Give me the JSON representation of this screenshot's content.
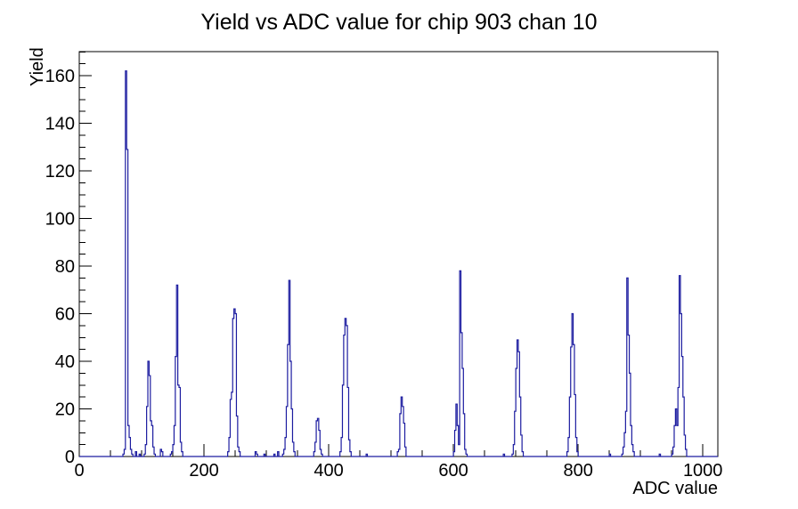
{
  "title": "Yield vs ADC value for chip 903 chan 10",
  "colors": {
    "histogram": "#1c1ca0",
    "axis": "#000000",
    "background": "#ffffff"
  },
  "chart_data": {
    "type": "line",
    "subtype": "histogram-step",
    "title": "Yield vs ADC value for chip 903 chan 10",
    "xlabel": "ADC value",
    "ylabel": "Yield",
    "xlim": [
      0,
      1024
    ],
    "ylim": [
      0,
      170.1
    ],
    "grid": false,
    "legend": "none",
    "x_major_ticks": [
      0,
      200,
      400,
      600,
      800,
      1000
    ],
    "x_major_tick_labels": [
      "0",
      "200",
      "400",
      "600",
      "800",
      "1000"
    ],
    "x_minor_step": 50,
    "y_major_ticks": [
      0,
      20,
      40,
      60,
      80,
      100,
      120,
      140,
      160
    ],
    "y_major_tick_labels": [
      "0",
      "20",
      "40",
      "60",
      "80",
      "100",
      "120",
      "140",
      "160"
    ],
    "y_minor_step": 5,
    "bin_width": 2,
    "bins": [
      [
        70,
        1
      ],
      [
        72,
        3
      ],
      [
        74,
        162
      ],
      [
        76,
        129
      ],
      [
        78,
        13
      ],
      [
        80,
        8
      ],
      [
        82,
        3
      ],
      [
        84,
        1
      ],
      [
        90,
        2
      ],
      [
        96,
        1
      ],
      [
        104,
        1
      ],
      [
        106,
        5
      ],
      [
        108,
        21
      ],
      [
        110,
        40
      ],
      [
        112,
        34
      ],
      [
        114,
        15
      ],
      [
        116,
        13
      ],
      [
        118,
        4
      ],
      [
        120,
        1
      ],
      [
        130,
        3
      ],
      [
        132,
        2
      ],
      [
        146,
        1
      ],
      [
        148,
        2
      ],
      [
        150,
        5
      ],
      [
        152,
        13
      ],
      [
        154,
        42
      ],
      [
        156,
        72
      ],
      [
        158,
        30
      ],
      [
        160,
        29
      ],
      [
        162,
        6
      ],
      [
        164,
        2
      ],
      [
        238,
        2
      ],
      [
        240,
        8
      ],
      [
        242,
        24
      ],
      [
        244,
        27
      ],
      [
        246,
        58
      ],
      [
        248,
        62
      ],
      [
        250,
        60
      ],
      [
        252,
        17
      ],
      [
        254,
        4
      ],
      [
        256,
        2
      ],
      [
        282,
        2
      ],
      [
        284,
        1
      ],
      [
        296,
        1
      ],
      [
        312,
        1
      ],
      [
        318,
        2
      ],
      [
        326,
        1
      ],
      [
        328,
        3
      ],
      [
        330,
        8
      ],
      [
        332,
        21
      ],
      [
        334,
        47
      ],
      [
        336,
        74
      ],
      [
        338,
        40
      ],
      [
        340,
        20
      ],
      [
        342,
        6
      ],
      [
        344,
        2
      ],
      [
        376,
        2
      ],
      [
        378,
        6
      ],
      [
        380,
        15
      ],
      [
        382,
        16
      ],
      [
        384,
        11
      ],
      [
        386,
        3
      ],
      [
        388,
        1
      ],
      [
        418,
        2
      ],
      [
        420,
        8
      ],
      [
        422,
        30
      ],
      [
        424,
        51
      ],
      [
        426,
        58
      ],
      [
        428,
        55
      ],
      [
        430,
        29
      ],
      [
        432,
        7
      ],
      [
        434,
        2
      ],
      [
        460,
        1
      ],
      [
        510,
        2
      ],
      [
        512,
        3
      ],
      [
        514,
        18
      ],
      [
        516,
        25
      ],
      [
        518,
        21
      ],
      [
        520,
        14
      ],
      [
        522,
        4
      ],
      [
        600,
        2
      ],
      [
        602,
        11
      ],
      [
        604,
        22
      ],
      [
        606,
        13
      ],
      [
        608,
        5
      ],
      [
        610,
        78
      ],
      [
        612,
        52
      ],
      [
        614,
        37
      ],
      [
        616,
        18
      ],
      [
        618,
        3
      ],
      [
        620,
        1
      ],
      [
        680,
        1
      ],
      [
        694,
        1
      ],
      [
        696,
        5
      ],
      [
        698,
        19
      ],
      [
        700,
        37
      ],
      [
        702,
        49
      ],
      [
        704,
        44
      ],
      [
        706,
        25
      ],
      [
        708,
        9
      ],
      [
        710,
        2
      ],
      [
        782,
        2
      ],
      [
        784,
        8
      ],
      [
        786,
        25
      ],
      [
        788,
        46
      ],
      [
        790,
        60
      ],
      [
        792,
        47
      ],
      [
        794,
        26
      ],
      [
        796,
        8
      ],
      [
        798,
        2
      ],
      [
        850,
        1
      ],
      [
        870,
        1
      ],
      [
        872,
        4
      ],
      [
        874,
        10
      ],
      [
        876,
        19
      ],
      [
        878,
        75
      ],
      [
        880,
        51
      ],
      [
        882,
        35
      ],
      [
        884,
        13
      ],
      [
        886,
        5
      ],
      [
        888,
        2
      ],
      [
        930,
        1
      ],
      [
        950,
        1
      ],
      [
        952,
        4
      ],
      [
        954,
        13
      ],
      [
        956,
        20
      ],
      [
        958,
        13
      ],
      [
        960,
        29
      ],
      [
        962,
        76
      ],
      [
        964,
        60
      ],
      [
        966,
        42
      ],
      [
        968,
        25
      ],
      [
        970,
        9
      ],
      [
        972,
        3
      ]
    ]
  }
}
